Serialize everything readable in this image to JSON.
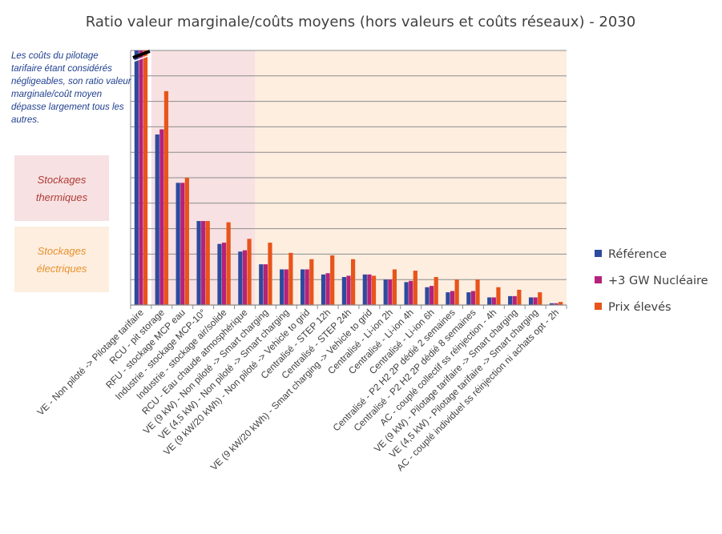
{
  "chart_data": {
    "type": "bar",
    "title": "Ratio valeur marginale/coûts moyens (hors valeurs et coûts réseaux) - 2030",
    "categories": [
      "VE - Non piloté -> Pilotage tarifaire",
      "RCU - pit storage",
      "RFU - stockage MCP eau",
      "Industrie - stockage MCP-10°",
      "Industrie - stockage air/solide",
      "RCU - Eau chaude atmosphérique",
      "VE (9 kW) - Non piloté -> Smart charging",
      "VE (4,5 kW) - Non piloté -> Smart charging",
      "VE (9 kW/20 kWh) - Non piloté -> Vehicle to grid",
      "Centralisé - STEP 12h",
      "Centralisé - STEP 24h",
      "VE (9 kW/20 kWh) - Smart charging -> Vehicle to grid",
      "Centralisé - Li-ion 2h",
      "Centralisé - Li-ion 4h",
      "Centralisé - Li-ion 6h",
      "Centralisé - P2 H2 2P dédié 2 semaines",
      "Centralisé - P2 H2 2P dédié 8 semaines",
      "AC - couplé collectif ss réinjection - 4h",
      "VE (9 kW) - Pilotage tarifaire -> Smart charging",
      "VE (4,5 kW) - Pilotage tarifaire -> Smart charging",
      "AC - couplé individuel ss réinjection ni achats opt - 2h"
    ],
    "series": [
      {
        "name": "Référence",
        "color": "#2e4a9e",
        "values": [
          10.0,
          6.7,
          4.8,
          3.3,
          2.4,
          2.1,
          1.6,
          1.4,
          1.4,
          1.2,
          1.1,
          1.2,
          1.0,
          0.9,
          0.7,
          0.5,
          0.5,
          0.3,
          0.35,
          0.3,
          0.07
        ]
      },
      {
        "name": "+3 GW Nucléaire",
        "color": "#b5227a",
        "values": [
          10.0,
          6.9,
          4.8,
          3.3,
          2.45,
          2.15,
          1.6,
          1.4,
          1.4,
          1.25,
          1.15,
          1.2,
          1.0,
          0.95,
          0.75,
          0.55,
          0.55,
          0.3,
          0.35,
          0.3,
          0.07
        ]
      },
      {
        "name": "Prix élevés",
        "color": "#e8541a",
        "values": [
          10.0,
          8.4,
          5.0,
          3.3,
          3.25,
          2.6,
          2.45,
          2.05,
          1.8,
          1.95,
          1.8,
          1.15,
          1.4,
          1.35,
          1.1,
          1.0,
          1.0,
          0.7,
          0.6,
          0.5,
          0.12
        ]
      }
    ],
    "ylim": [
      0,
      10
    ],
    "y_gridlines": 10,
    "grid": true,
    "legend_position": "right",
    "first_bar_truncated": true,
    "shaded_regions": [
      {
        "label": "Stockages thermiques",
        "from_category": 1,
        "to_category": 5,
        "color": "#f7e1e2"
      },
      {
        "label": "Stockages électriques",
        "from_category": 6,
        "to_category": 20,
        "color": "#fdeee0"
      }
    ]
  },
  "annotation": "Les coûts du pilotage tarifaire étant considérés négligeables, son ratio valeur marginale/coût moyen dépasse largement tous les autres.",
  "boxes": {
    "thermal_line1": "Stockages",
    "thermal_line2": "thermiques",
    "electric_line1": "Stockages",
    "electric_line2": "électriques"
  }
}
